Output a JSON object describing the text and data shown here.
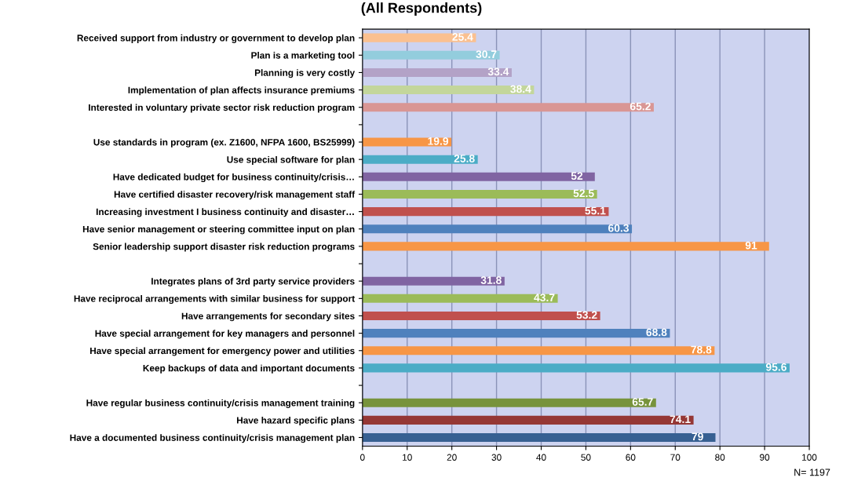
{
  "chart_data": {
    "type": "bar",
    "orientation": "horizontal",
    "title": "(All Respondents)",
    "categories": [
      "Received support from industry or government to develop plan",
      "Plan is a marketing tool",
      "Planning is very costly",
      "Implementation of plan affects insurance premiums",
      "Interested in voluntary private sector risk reduction program",
      null,
      "Use standards in program (ex. Z1600, NFPA 1600, BS25999)",
      "Use special software for plan",
      "Have dedicated budget for business continuity/crisis…",
      "Have certified disaster recovery/risk management staff",
      "Increasing investment I business continuity and disaster…",
      "Have senior management or steering committee input on plan",
      "Senior leadership support disaster risk reduction programs",
      null,
      "Integrates plans of 3rd party service providers",
      "Have reciprocal arrangements with similar business for support",
      "Have arrangements for secondary sites",
      "Have special arrangement for key managers and personnel",
      "Have special arrangement for emergency power and utilities",
      "Keep backups of data and important documents",
      null,
      "Have regular business continuity/crisis management training",
      "Have hazard specific plans",
      "Have a documented business continuity/crisis management plan"
    ],
    "values": [
      25.4,
      30.7,
      33.4,
      38.4,
      65.2,
      null,
      19.9,
      25.8,
      52,
      52.5,
      55.1,
      60.3,
      91,
      null,
      31.8,
      43.7,
      53.2,
      68.8,
      78.8,
      95.6,
      null,
      65.7,
      74.1,
      79
    ],
    "colors": [
      "#fac090",
      "#93cddd",
      "#b3a2c7",
      "#c3d69b",
      "#d99694",
      "#ffffff",
      "#f79646",
      "#4bacc6",
      "#8064a2",
      "#9bbb59",
      "#c0504d",
      "#4f81bd",
      "#f79646",
      "#ffffff",
      "#8064a2",
      "#9bbb59",
      "#c0504d",
      "#4f81bd",
      "#f79646",
      "#4bacc6",
      "#ffffff",
      "#77933c",
      "#953735",
      "#376092"
    ],
    "data_labels": true,
    "xlim": [
      0,
      100
    ],
    "xticks": [
      0,
      10,
      20,
      30,
      40,
      50,
      60,
      70,
      80,
      90,
      100
    ],
    "grid": "x",
    "annotations": [
      "N= 1197"
    ]
  }
}
